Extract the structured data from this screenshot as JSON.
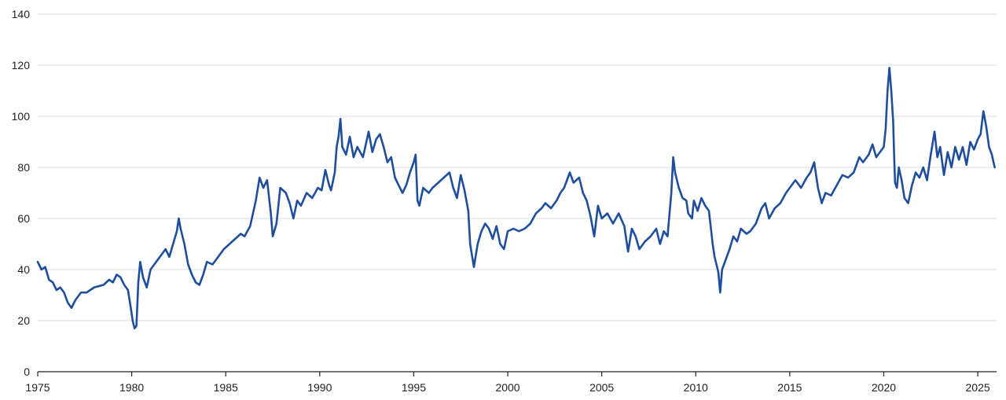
{
  "chart_data": {
    "type": "line",
    "title": "",
    "xlabel": "",
    "ylabel": "",
    "xlim": [
      1975,
      2026
    ],
    "ylim": [
      0,
      140
    ],
    "grid": true,
    "x_ticks": [
      "1975",
      "1980",
      "1985",
      "1990",
      "1995",
      "2000",
      "2005",
      "2010",
      "2015",
      "2020",
      "2025"
    ],
    "y_ticks": [
      "0",
      "20",
      "40",
      "60",
      "80",
      "100",
      "120",
      "140"
    ],
    "line_color": "#1f4e9c",
    "series": [
      {
        "points": [
          [
            1975.0,
            43
          ],
          [
            1975.2,
            40
          ],
          [
            1975.4,
            41
          ],
          [
            1975.6,
            36
          ],
          [
            1975.8,
            35
          ],
          [
            1976.0,
            32
          ],
          [
            1976.2,
            33
          ],
          [
            1976.4,
            31
          ],
          [
            1976.6,
            27
          ],
          [
            1976.8,
            25
          ],
          [
            1977.0,
            28
          ],
          [
            1977.3,
            31
          ],
          [
            1977.6,
            31
          ],
          [
            1978.0,
            33
          ],
          [
            1978.5,
            34
          ],
          [
            1978.8,
            36
          ],
          [
            1979.0,
            35
          ],
          [
            1979.2,
            38
          ],
          [
            1979.4,
            37
          ],
          [
            1979.6,
            34
          ],
          [
            1979.8,
            32
          ],
          [
            1979.95,
            25
          ],
          [
            1980.05,
            20
          ],
          [
            1980.15,
            17
          ],
          [
            1980.25,
            18
          ],
          [
            1980.35,
            35
          ],
          [
            1980.45,
            43
          ],
          [
            1980.6,
            37
          ],
          [
            1980.8,
            33
          ],
          [
            1981.0,
            40
          ],
          [
            1981.3,
            43
          ],
          [
            1981.6,
            46
          ],
          [
            1981.8,
            48
          ],
          [
            1982.0,
            45
          ],
          [
            1982.2,
            50
          ],
          [
            1982.4,
            55
          ],
          [
            1982.5,
            60
          ],
          [
            1982.6,
            56
          ],
          [
            1982.8,
            50
          ],
          [
            1983.0,
            42
          ],
          [
            1983.2,
            38
          ],
          [
            1983.4,
            35
          ],
          [
            1983.6,
            34
          ],
          [
            1983.8,
            38
          ],
          [
            1984.0,
            43
          ],
          [
            1984.3,
            42
          ],
          [
            1984.6,
            45
          ],
          [
            1984.9,
            48
          ],
          [
            1985.2,
            50
          ],
          [
            1985.5,
            52
          ],
          [
            1985.8,
            54
          ],
          [
            1986.0,
            53
          ],
          [
            1986.3,
            57
          ],
          [
            1986.6,
            67
          ],
          [
            1986.8,
            76
          ],
          [
            1987.0,
            72
          ],
          [
            1987.2,
            75
          ],
          [
            1987.4,
            62
          ],
          [
            1987.5,
            53
          ],
          [
            1987.7,
            58
          ],
          [
            1987.9,
            72
          ],
          [
            1988.2,
            70
          ],
          [
            1988.4,
            66
          ],
          [
            1988.6,
            60
          ],
          [
            1988.8,
            67
          ],
          [
            1989.0,
            65
          ],
          [
            1989.3,
            70
          ],
          [
            1989.6,
            68
          ],
          [
            1989.9,
            72
          ],
          [
            1990.1,
            71
          ],
          [
            1990.3,
            79
          ],
          [
            1990.5,
            73
          ],
          [
            1990.6,
            71
          ],
          [
            1990.8,
            78
          ],
          [
            1990.9,
            88
          ],
          [
            1991.0,
            92
          ],
          [
            1991.1,
            99
          ],
          [
            1991.2,
            88
          ],
          [
            1991.4,
            85
          ],
          [
            1991.6,
            92
          ],
          [
            1991.8,
            84
          ],
          [
            1992.0,
            88
          ],
          [
            1992.3,
            84
          ],
          [
            1992.6,
            94
          ],
          [
            1992.8,
            86
          ],
          [
            1993.0,
            91
          ],
          [
            1993.2,
            93
          ],
          [
            1993.4,
            88
          ],
          [
            1993.6,
            82
          ],
          [
            1993.8,
            84
          ],
          [
            1994.0,
            76
          ],
          [
            1994.2,
            73
          ],
          [
            1994.4,
            70
          ],
          [
            1994.6,
            73
          ],
          [
            1994.8,
            78
          ],
          [
            1995.0,
            82
          ],
          [
            1995.1,
            85
          ],
          [
            1995.2,
            67
          ],
          [
            1995.3,
            65
          ],
          [
            1995.5,
            72
          ],
          [
            1995.8,
            70
          ],
          [
            1996.0,
            72
          ],
          [
            1996.3,
            74
          ],
          [
            1996.6,
            76
          ],
          [
            1996.9,
            78
          ],
          [
            1997.1,
            72
          ],
          [
            1997.3,
            68
          ],
          [
            1997.5,
            77
          ],
          [
            1997.7,
            71
          ],
          [
            1997.9,
            63
          ],
          [
            1998.0,
            50
          ],
          [
            1998.2,
            41
          ],
          [
            1998.4,
            50
          ],
          [
            1998.6,
            55
          ],
          [
            1998.8,
            58
          ],
          [
            1999.0,
            56
          ],
          [
            1999.2,
            52
          ],
          [
            1999.4,
            57
          ],
          [
            1999.6,
            50
          ],
          [
            1999.8,
            48
          ],
          [
            2000.0,
            55
          ],
          [
            2000.3,
            56
          ],
          [
            2000.6,
            55
          ],
          [
            2000.9,
            56
          ],
          [
            2001.2,
            58
          ],
          [
            2001.5,
            62
          ],
          [
            2001.8,
            64
          ],
          [
            2002.0,
            66
          ],
          [
            2002.3,
            64
          ],
          [
            2002.6,
            67
          ],
          [
            2002.8,
            70
          ],
          [
            2003.0,
            72
          ],
          [
            2003.3,
            78
          ],
          [
            2003.5,
            74
          ],
          [
            2003.8,
            76
          ],
          [
            2004.0,
            70
          ],
          [
            2004.2,
            67
          ],
          [
            2004.4,
            61
          ],
          [
            2004.6,
            53
          ],
          [
            2004.8,
            65
          ],
          [
            2005.0,
            60
          ],
          [
            2005.3,
            62
          ],
          [
            2005.6,
            58
          ],
          [
            2005.9,
            62
          ],
          [
            2006.2,
            57
          ],
          [
            2006.4,
            47
          ],
          [
            2006.6,
            56
          ],
          [
            2006.8,
            53
          ],
          [
            2007.0,
            48
          ],
          [
            2007.3,
            51
          ],
          [
            2007.6,
            53
          ],
          [
            2007.9,
            56
          ],
          [
            2008.1,
            50
          ],
          [
            2008.3,
            55
          ],
          [
            2008.5,
            53
          ],
          [
            2008.7,
            70
          ],
          [
            2008.8,
            84
          ],
          [
            2008.9,
            78
          ],
          [
            2009.1,
            72
          ],
          [
            2009.3,
            68
          ],
          [
            2009.5,
            67
          ],
          [
            2009.6,
            62
          ],
          [
            2009.8,
            60
          ],
          [
            2009.9,
            67
          ],
          [
            2010.1,
            63
          ],
          [
            2010.3,
            68
          ],
          [
            2010.5,
            65
          ],
          [
            2010.7,
            63
          ],
          [
            2010.9,
            50
          ],
          [
            2011.0,
            45
          ],
          [
            2011.2,
            39
          ],
          [
            2011.3,
            31
          ],
          [
            2011.4,
            40
          ],
          [
            2011.6,
            44
          ],
          [
            2011.8,
            48
          ],
          [
            2012.0,
            53
          ],
          [
            2012.2,
            51
          ],
          [
            2012.4,
            56
          ],
          [
            2012.7,
            54
          ],
          [
            2012.9,
            55
          ],
          [
            2013.2,
            58
          ],
          [
            2013.5,
            64
          ],
          [
            2013.7,
            66
          ],
          [
            2013.9,
            60
          ],
          [
            2014.2,
            64
          ],
          [
            2014.5,
            66
          ],
          [
            2014.8,
            70
          ],
          [
            2015.0,
            72
          ],
          [
            2015.3,
            75
          ],
          [
            2015.6,
            72
          ],
          [
            2015.9,
            76
          ],
          [
            2016.1,
            78
          ],
          [
            2016.3,
            82
          ],
          [
            2016.5,
            72
          ],
          [
            2016.7,
            66
          ],
          [
            2016.9,
            70
          ],
          [
            2017.2,
            69
          ],
          [
            2017.5,
            73
          ],
          [
            2017.8,
            77
          ],
          [
            2018.1,
            76
          ],
          [
            2018.4,
            78
          ],
          [
            2018.7,
            84
          ],
          [
            2018.9,
            82
          ],
          [
            2019.2,
            85
          ],
          [
            2019.4,
            89
          ],
          [
            2019.6,
            84
          ],
          [
            2019.8,
            86
          ],
          [
            2020.0,
            88
          ],
          [
            2020.1,
            95
          ],
          [
            2020.2,
            110
          ],
          [
            2020.3,
            119
          ],
          [
            2020.4,
            110
          ],
          [
            2020.5,
            98
          ],
          [
            2020.55,
            85
          ],
          [
            2020.6,
            74
          ],
          [
            2020.7,
            72
          ],
          [
            2020.8,
            80
          ],
          [
            2020.95,
            75
          ],
          [
            2021.1,
            68
          ],
          [
            2021.3,
            66
          ],
          [
            2021.5,
            73
          ],
          [
            2021.7,
            78
          ],
          [
            2021.9,
            76
          ],
          [
            2022.1,
            80
          ],
          [
            2022.3,
            75
          ],
          [
            2022.5,
            85
          ],
          [
            2022.7,
            94
          ],
          [
            2022.85,
            84
          ],
          [
            2023.0,
            88
          ],
          [
            2023.2,
            77
          ],
          [
            2023.4,
            86
          ],
          [
            2023.6,
            80
          ],
          [
            2023.8,
            88
          ],
          [
            2024.0,
            83
          ],
          [
            2024.2,
            88
          ],
          [
            2024.4,
            81
          ],
          [
            2024.6,
            90
          ],
          [
            2024.8,
            87
          ],
          [
            2025.0,
            91
          ],
          [
            2025.15,
            93
          ],
          [
            2025.3,
            102
          ],
          [
            2025.45,
            96
          ],
          [
            2025.6,
            88
          ],
          [
            2025.75,
            85
          ],
          [
            2025.9,
            80
          ]
        ]
      }
    ]
  }
}
